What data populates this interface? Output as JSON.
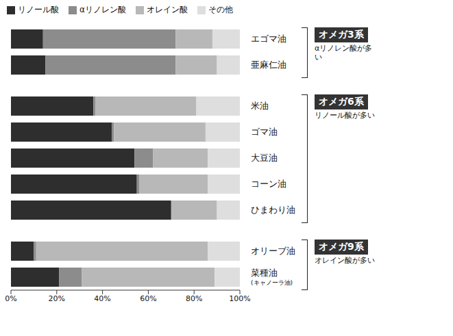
{
  "chart_data": {
    "type": "bar",
    "orientation": "horizontal",
    "stacked": true,
    "grid": false,
    "legend": "top",
    "categories": [
      "エゴマ油",
      "亜麻仁油",
      "米油",
      "ゴマ油",
      "大豆油",
      "コーン油",
      "ひまわり油",
      "オリーブ油",
      "菜種油(キャノーラ油)"
    ],
    "series": [
      {
        "name": "リノール酸",
        "color": "#2e2e2e",
        "values": [
          14,
          15,
          36,
          44,
          54,
          55,
          70,
          10,
          21
        ]
      },
      {
        "name": "αリノレン酸",
        "color": "#8c8c8c",
        "values": [
          58,
          57,
          1,
          1,
          8,
          1,
          0,
          1,
          10
        ]
      },
      {
        "name": "オレイン酸",
        "color": "#b8b8b8",
        "values": [
          16,
          18,
          44,
          40,
          24,
          30,
          20,
          75,
          58
        ]
      },
      {
        "name": "その他",
        "color": "#dedede",
        "values": [
          12,
          10,
          19,
          15,
          14,
          14,
          10,
          14,
          11
        ]
      }
    ],
    "xlim": [
      0,
      100
    ],
    "xticks": [
      {
        "value": 0,
        "label": "0%"
      },
      {
        "value": 20,
        "label": "20%"
      },
      {
        "value": 40,
        "label": "40%"
      },
      {
        "value": 60,
        "label": "60%"
      },
      {
        "value": 80,
        "label": "80%"
      },
      {
        "value": 100,
        "label": "100%"
      }
    ],
    "groups": [
      {
        "name": "オメガ3系",
        "note": "αリノレン酸が多い",
        "categories": [
          "エゴマ油",
          "亜麻仁油"
        ]
      },
      {
        "name": "オメガ6系",
        "note": "リノール酸が多い",
        "categories": [
          "米油",
          "ゴマ油",
          "大豆油",
          "コーン油",
          "ひまわり油"
        ]
      },
      {
        "name": "オメガ9系",
        "note": "オレイン酸が多い",
        "categories": [
          "オリーブ油",
          "菜種油(キャノーラ油)"
        ]
      }
    ]
  }
}
